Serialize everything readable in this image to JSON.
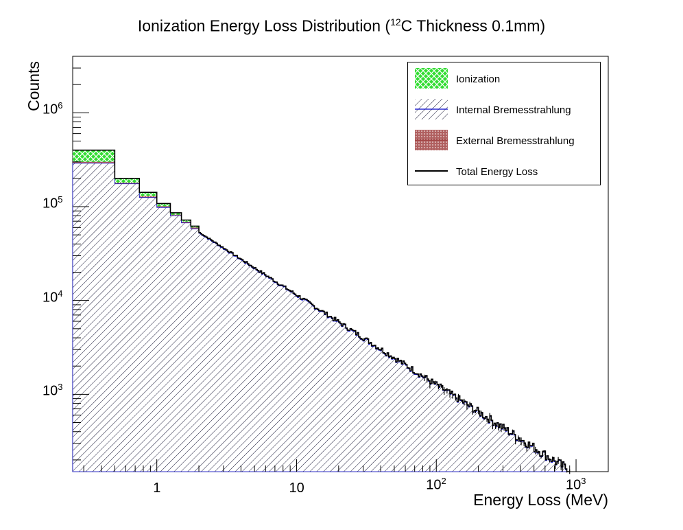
{
  "title": {
    "prefix": "Ionization Energy Loss Distribution (",
    "sup": "12",
    "suffix": "C Thickness 0.1mm)"
  },
  "chart_data": {
    "type": "histogram",
    "title": "Ionization Energy Loss Distribution (12C Thickness 0.1mm)",
    "xlabel": "Energy Loss (MeV)",
    "ylabel": "Counts",
    "xscale": "log",
    "yscale": "log",
    "xlim": [
      0.25,
      1700
    ],
    "ylim": [
      150,
      4000000
    ],
    "x_ticks": [
      {
        "value": 1,
        "base": "1",
        "exp": ""
      },
      {
        "value": 10,
        "base": "10",
        "exp": ""
      },
      {
        "value": 100,
        "base": "10",
        "exp": "2"
      },
      {
        "value": 1000,
        "base": "10",
        "exp": "3"
      }
    ],
    "y_ticks": [
      {
        "value": 1000,
        "base": "10",
        "exp": "3"
      },
      {
        "value": 10000,
        "base": "10",
        "exp": "4"
      },
      {
        "value": 100000,
        "base": "10",
        "exp": "5"
      },
      {
        "value": 1000000,
        "base": "10",
        "exp": "6"
      }
    ],
    "bin_edges": [
      0.25,
      0.5,
      0.75,
      1.0,
      1.25,
      1.5,
      1.75,
      2.0
    ],
    "series": [
      {
        "name": "Ionization",
        "color": "#33cc33",
        "fill": "crosshatch",
        "values": [
          400000,
          200000,
          142000,
          108000,
          86000,
          72000,
          62000
        ]
      },
      {
        "name": "Internal Bremesstrahlung",
        "color": "#0000cc",
        "fill": "hatch",
        "values": [
          290000,
          175000,
          125000,
          98000,
          80000,
          67000,
          58000
        ]
      },
      {
        "name": "External Bremesstrahlung",
        "color": "#993333",
        "fill": "dots",
        "values": [
          300000,
          180000,
          130000,
          101000,
          82000,
          69000,
          60000
        ]
      },
      {
        "name": "Total Energy Loss",
        "color": "#000000",
        "fill": "none",
        "values": [
          400000,
          200000,
          142000,
          108000,
          86000,
          72000,
          62000
        ]
      }
    ],
    "tail": {
      "x_start": 2.0,
      "y_start": 52000,
      "x_end": 900,
      "y_end": 150
    },
    "legend_position": "top-right"
  }
}
